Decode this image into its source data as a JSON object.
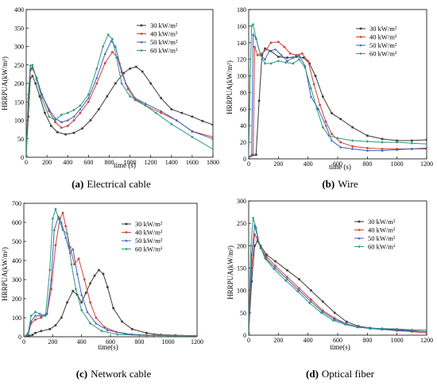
{
  "chart_data": [
    {
      "type": "line",
      "caption_letter": "(a)",
      "caption_text": "Electrical cable",
      "xlabel": "time (s)",
      "ylabel": "HRRPUA(kW/m²)",
      "xlim": [
        0,
        1800
      ],
      "ylim": [
        0,
        400
      ],
      "xticks": [
        "0",
        "200",
        "400",
        "600",
        "800",
        "1000",
        "1200",
        "1400",
        "1600",
        "1800"
      ],
      "yticks": [
        "0",
        "50",
        "100",
        "150",
        "200",
        "250",
        "300",
        "350",
        "400"
      ],
      "legend": "top-right",
      "series": [
        {
          "name": "30 kW/m²",
          "color": "#3a3a3a",
          "x": [
            0,
            20,
            40,
            60,
            90,
            130,
            180,
            240,
            300,
            380,
            460,
            540,
            620,
            700,
            780,
            860,
            940,
            1000,
            1060,
            1120,
            1200,
            1300,
            1400,
            1500,
            1600,
            1700,
            1800
          ],
          "y": [
            5,
            110,
            215,
            220,
            200,
            165,
            120,
            85,
            68,
            62,
            66,
            78,
            100,
            130,
            165,
            200,
            228,
            240,
            245,
            232,
            200,
            160,
            130,
            120,
            110,
            98,
            88
          ]
        },
        {
          "name": "40 kW/m²",
          "color": "#d0433a",
          "x": [
            0,
            20,
            40,
            60,
            100,
            150,
            220,
            280,
            340,
            400,
            460,
            520,
            600,
            680,
            760,
            830,
            880,
            920,
            980,
            1050,
            1150,
            1300,
            1450,
            1600,
            1800
          ],
          "y": [
            5,
            150,
            235,
            240,
            215,
            170,
            125,
            95,
            80,
            85,
            100,
            120,
            150,
            200,
            255,
            285,
            270,
            230,
            185,
            155,
            140,
            120,
            100,
            70,
            55
          ]
        },
        {
          "name": "50 kW/m²",
          "color": "#3f5fbf",
          "x": [
            0,
            20,
            40,
            60,
            100,
            150,
            220,
            280,
            340,
            400,
            460,
            520,
            600,
            680,
            760,
            820,
            860,
            900,
            960,
            1050,
            1150,
            1300,
            1450,
            1600,
            1800
          ],
          "y": [
            5,
            160,
            240,
            245,
            215,
            170,
            130,
            105,
            95,
            100,
            110,
            130,
            160,
            215,
            280,
            315,
            300,
            255,
            200,
            160,
            145,
            125,
            100,
            70,
            50
          ]
        },
        {
          "name": "60 kW/m²",
          "color": "#2f9a7a",
          "x": [
            0,
            20,
            40,
            60,
            100,
            150,
            220,
            280,
            340,
            400,
            460,
            520,
            600,
            680,
            740,
            790,
            830,
            870,
            920,
            1000,
            1100,
            1250,
            1400,
            1600,
            1800
          ],
          "y": [
            5,
            170,
            248,
            250,
            210,
            160,
            110,
            100,
            115,
            120,
            128,
            140,
            170,
            240,
            300,
            332,
            320,
            270,
            200,
            165,
            150,
            120,
            90,
            55,
            22
          ]
        }
      ]
    },
    {
      "type": "line",
      "caption_letter": "(b)",
      "caption_text": "Wire",
      "xlabel": "time (s)",
      "ylabel": "HRRPUA(kW/m²)",
      "xlim": [
        0,
        1200
      ],
      "ylim": [
        0,
        180
      ],
      "xticks": [
        "0",
        "200",
        "400",
        "600",
        "800",
        "1000",
        "1200"
      ],
      "yticks": [
        "0",
        "20",
        "40",
        "60",
        "80",
        "100",
        "120",
        "140",
        "160",
        "180"
      ],
      "legend": "top-right",
      "series": [
        {
          "name": "30 kW/m²",
          "color": "#3a3a3a",
          "x": [
            0,
            50,
            70,
            90,
            110,
            150,
            200,
            260,
            320,
            370,
            410,
            450,
            500,
            560,
            620,
            700,
            800,
            900,
            1000,
            1100,
            1200
          ],
          "y": [
            2,
            5,
            70,
            125,
            133,
            130,
            123,
            122,
            123,
            122,
            115,
            100,
            75,
            55,
            48,
            38,
            28,
            24,
            22,
            22,
            23
          ]
        },
        {
          "name": "40 kW/m²",
          "color": "#d0433a",
          "x": [
            0,
            30,
            40,
            60,
            90,
            120,
            150,
            200,
            240,
            280,
            320,
            360,
            400,
            440,
            480,
            520,
            560,
            620,
            700,
            800,
            900,
            1000,
            1100,
            1200
          ],
          "y": [
            2,
            5,
            135,
            125,
            127,
            132,
            140,
            141,
            135,
            127,
            125,
            127,
            118,
            90,
            65,
            45,
            30,
            20,
            15,
            13,
            12,
            12,
            12,
            13
          ]
        },
        {
          "name": "50 kW/m²",
          "color": "#3f5fbf",
          "x": [
            0,
            20,
            30,
            50,
            80,
            110,
            140,
            180,
            220,
            260,
            300,
            340,
            380,
            420,
            470,
            520,
            560,
            620,
            700,
            800,
            900,
            1000,
            1100,
            1200
          ],
          "y": [
            2,
            5,
            150,
            145,
            125,
            120,
            130,
            132,
            125,
            118,
            122,
            125,
            112,
            75,
            60,
            40,
            22,
            14,
            12,
            10,
            10,
            11,
            12,
            12
          ]
        },
        {
          "name": "60 kW/m²",
          "color": "#2f9a7a",
          "x": [
            0,
            10,
            20,
            30,
            50,
            80,
            110,
            150,
            200,
            250,
            300,
            340,
            380,
            420,
            460,
            500,
            540,
            600,
            700,
            800,
            900,
            1000,
            1100,
            1200
          ],
          "y": [
            2,
            100,
            160,
            162,
            145,
            125,
            115,
            115,
            118,
            116,
            115,
            120,
            110,
            85,
            60,
            38,
            28,
            25,
            22,
            21,
            20,
            20,
            19,
            18
          ]
        }
      ]
    },
    {
      "type": "line",
      "caption_letter": "(c)",
      "caption_text": "Network cable",
      "xlabel": "time(s)",
      "ylabel": "HRRPUA(kW/m²)",
      "xlim": [
        0,
        1200
      ],
      "ylim": [
        0,
        700
      ],
      "xticks": [
        "0",
        "200",
        "400",
        "600",
        "800",
        "1000",
        "1200"
      ],
      "yticks": [
        "0",
        "100",
        "200",
        "300",
        "400",
        "500",
        "600",
        "700"
      ],
      "legend": "top-right",
      "series": [
        {
          "name": "30 kW/m²",
          "color": "#3a3a3a",
          "x": [
            0,
            40,
            60,
            80,
            120,
            180,
            220,
            260,
            300,
            340,
            370,
            400,
            430,
            460,
            490,
            520,
            550,
            580,
            620,
            680,
            750,
            850,
            950,
            1050,
            1200
          ],
          "y": [
            0,
            5,
            10,
            20,
            30,
            40,
            60,
            100,
            180,
            240,
            220,
            180,
            230,
            280,
            320,
            350,
            330,
            260,
            150,
            80,
            40,
            20,
            10,
            8,
            5
          ]
        },
        {
          "name": "40 kW/m²",
          "color": "#d0433a",
          "x": [
            0,
            30,
            50,
            80,
            120,
            160,
            190,
            220,
            250,
            270,
            290,
            320,
            350,
            380,
            420,
            460,
            500,
            560,
            640,
            750,
            900,
            1050,
            1200
          ],
          "y": [
            0,
            10,
            70,
            90,
            100,
            120,
            250,
            480,
            620,
            650,
            580,
            470,
            380,
            410,
            300,
            180,
            100,
            50,
            25,
            12,
            8,
            6,
            5
          ]
        },
        {
          "name": "50 kW/m²",
          "color": "#3f5fbf",
          "x": [
            0,
            30,
            50,
            80,
            120,
            160,
            190,
            210,
            240,
            260,
            290,
            320,
            340,
            370,
            400,
            440,
            500,
            580,
            700,
            850,
            1000,
            1200
          ],
          "y": [
            0,
            10,
            80,
            110,
            110,
            120,
            300,
            560,
            630,
            600,
            520,
            440,
            460,
            330,
            220,
            130,
            70,
            35,
            15,
            8,
            6,
            5
          ]
        },
        {
          "name": "60 kW/m²",
          "color": "#2f9a7a",
          "x": [
            0,
            30,
            50,
            80,
            110,
            150,
            180,
            200,
            220,
            240,
            270,
            300,
            330,
            360,
            400,
            460,
            540,
            650,
            800,
            950,
            1100,
            1200
          ],
          "y": [
            0,
            20,
            110,
            130,
            120,
            110,
            350,
            620,
            670,
            620,
            560,
            540,
            380,
            250,
            140,
            70,
            30,
            12,
            8,
            6,
            5,
            5
          ]
        }
      ]
    },
    {
      "type": "line",
      "caption_letter": "(d)",
      "caption_text": "Optical fiber",
      "xlabel": "time(s)",
      "ylabel": "HRRPUA(kW/m²)",
      "xlim": [
        0,
        1200
      ],
      "ylim": [
        0,
        300
      ],
      "xticks": [
        "0",
        "200",
        "400",
        "600",
        "800",
        "1000",
        "1200"
      ],
      "yticks": [
        "0",
        "50",
        "100",
        "150",
        "200",
        "250",
        "300"
      ],
      "legend": "top-right",
      "series": [
        {
          "name": "30 kW/m²",
          "color": "#3a3a3a",
          "x": [
            0,
            20,
            40,
            60,
            80,
            120,
            180,
            260,
            340,
            420,
            500,
            580,
            660,
            740,
            820,
            900,
            1000,
            1100,
            1200
          ],
          "y": [
            5,
            120,
            200,
            210,
            200,
            180,
            165,
            145,
            125,
            100,
            75,
            50,
            30,
            20,
            16,
            14,
            12,
            10,
            8
          ]
        },
        {
          "name": "40 kW/m²",
          "color": "#d0433a",
          "x": [
            0,
            20,
            40,
            60,
            80,
            120,
            180,
            260,
            340,
            420,
            500,
            580,
            660,
            740,
            820,
            900,
            1000,
            1100,
            1200
          ],
          "y": [
            5,
            150,
            225,
            215,
            195,
            175,
            155,
            130,
            105,
            80,
            55,
            38,
            25,
            18,
            15,
            13,
            10,
            8,
            5
          ]
        },
        {
          "name": "50 kW/m²",
          "color": "#3f5fbf",
          "x": [
            0,
            20,
            40,
            60,
            80,
            120,
            180,
            260,
            340,
            420,
            500,
            580,
            660,
            740,
            820,
            900,
            1000,
            1100,
            1200
          ],
          "y": [
            5,
            180,
            245,
            220,
            195,
            170,
            150,
            125,
            100,
            75,
            52,
            35,
            25,
            18,
            15,
            13,
            11,
            9,
            8
          ]
        },
        {
          "name": "60 kW/m²",
          "color": "#2f9a7a",
          "x": [
            0,
            15,
            30,
            50,
            70,
            110,
            170,
            250,
            330,
            410,
            490,
            570,
            650,
            730,
            810,
            900,
            1000,
            1100,
            1200
          ],
          "y": [
            5,
            200,
            262,
            240,
            205,
            172,
            148,
            122,
            98,
            72,
            50,
            33,
            24,
            18,
            16,
            15,
            14,
            12,
            12
          ]
        }
      ]
    }
  ]
}
